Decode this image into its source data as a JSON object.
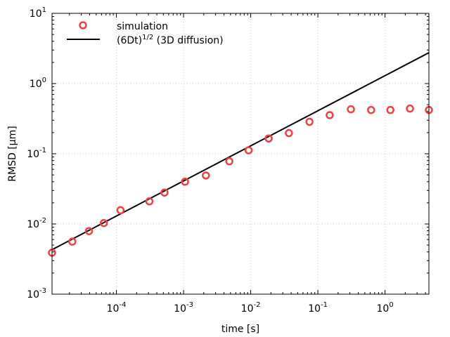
{
  "chart_data": {
    "type": "scatter",
    "xlabel": "time [s]",
    "ylabel": "RMSD [μm]",
    "x_scale": "log",
    "y_scale": "log",
    "xlim": [
      1.1e-05,
      4.5
    ],
    "ylim": [
      0.001,
      10
    ],
    "grid": true,
    "legend_position": "top-left",
    "x_ticks": [
      {
        "value": 0.0001,
        "base": "10",
        "exp": "-4"
      },
      {
        "value": 0.001,
        "base": "10",
        "exp": "-3"
      },
      {
        "value": 0.01,
        "base": "10",
        "exp": "-2"
      },
      {
        "value": 0.1,
        "base": "10",
        "exp": "-1"
      },
      {
        "value": 1,
        "base": "10",
        "exp": "0"
      }
    ],
    "y_ticks": [
      {
        "value": 0.001,
        "base": "10",
        "exp": "-3"
      },
      {
        "value": 0.01,
        "base": "10",
        "exp": "-2"
      },
      {
        "value": 0.1,
        "base": "10",
        "exp": "-1"
      },
      {
        "value": 1,
        "base": "10",
        "exp": "0"
      },
      {
        "value": 10,
        "base": "10",
        "exp": "1"
      }
    ],
    "series": [
      {
        "name": "simulation",
        "kind": "markers",
        "marker": "open-circle",
        "color": "#f04040",
        "x": [
          1.1e-05,
          2.2e-05,
          3.9e-05,
          6.5e-05,
          0.000115,
          0.00031,
          0.00052,
          0.00105,
          0.00215,
          0.0048,
          0.0093,
          0.0185,
          0.037,
          0.075,
          0.15,
          0.31,
          0.62,
          1.2,
          2.35,
          4.5
        ],
        "y": [
          0.0039,
          0.0056,
          0.0079,
          0.0103,
          0.0157,
          0.021,
          0.028,
          0.04,
          0.049,
          0.078,
          0.112,
          0.165,
          0.197,
          0.285,
          0.355,
          0.43,
          0.42,
          0.42,
          0.44,
          0.42
        ]
      },
      {
        "name_prefix": "(6Dt)",
        "name_sup": "1/2",
        "name_suffix": " (3D diffusion)",
        "kind": "line",
        "color": "#000000",
        "x": [
          1.1e-05,
          4.5
        ],
        "y": [
          0.0043,
          2.75
        ]
      }
    ]
  }
}
